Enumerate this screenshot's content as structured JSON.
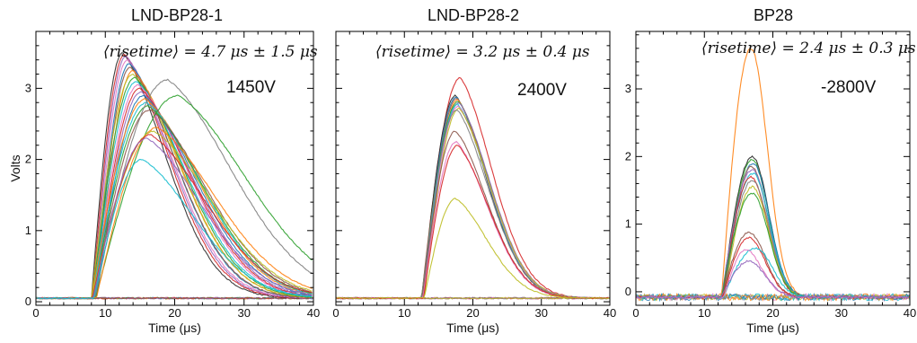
{
  "chart_data": [
    {
      "type": "line",
      "title": "LND-BP28-1",
      "xlabel": "Time (μs)",
      "ylabel": "Volts",
      "xlim": [
        0,
        40
      ],
      "ylim": [
        -0.05,
        3.8
      ],
      "xticks": [
        0,
        10,
        20,
        30,
        40
      ],
      "yticks": [
        0,
        1,
        2,
        3
      ],
      "annotation": "⟨risetime⟩ = 4.7 μs ± 1.5 μs",
      "voltage": "1450V",
      "baseline": 0.05,
      "rise_start_us": 8.0,
      "series_count": 40,
      "pulses": [
        {
          "peak_v": 3.5,
          "peak_time_us": 12.5,
          "color": "#2a2a2a"
        },
        {
          "peak_v": 3.48,
          "peak_time_us": 12.8,
          "color": "#d62728"
        },
        {
          "peak_v": 3.45,
          "peak_time_us": 13.0,
          "color": "#9467bd"
        },
        {
          "peak_v": 3.4,
          "peak_time_us": 13.2,
          "color": "#e377c2"
        },
        {
          "peak_v": 3.35,
          "peak_time_us": 13.5,
          "color": "#1f77b4"
        },
        {
          "peak_v": 3.3,
          "peak_time_us": 13.6,
          "color": "#8c564b"
        },
        {
          "peak_v": 3.25,
          "peak_time_us": 14.0,
          "color": "#ff7f0e"
        },
        {
          "peak_v": 3.2,
          "peak_time_us": 14.0,
          "color": "#bcbd22"
        },
        {
          "peak_v": 3.15,
          "peak_time_us": 14.3,
          "color": "#2ca02c"
        },
        {
          "peak_v": 3.1,
          "peak_time_us": 14.5,
          "color": "#17becf"
        },
        {
          "peak_v": 3.05,
          "peak_time_us": 14.8,
          "color": "#e377c2"
        },
        {
          "peak_v": 3.0,
          "peak_time_us": 15.0,
          "color": "#d62728"
        },
        {
          "peak_v": 2.95,
          "peak_time_us": 15.2,
          "color": "#9467bd"
        },
        {
          "peak_v": 2.9,
          "peak_time_us": 15.5,
          "color": "#1f77b4"
        },
        {
          "peak_v": 2.85,
          "peak_time_us": 15.8,
          "color": "#ff7f0e"
        },
        {
          "peak_v": 2.8,
          "peak_time_us": 16.0,
          "color": "#17becf"
        },
        {
          "peak_v": 2.75,
          "peak_time_us": 16.2,
          "color": "#2ca02c"
        },
        {
          "peak_v": 2.7,
          "peak_time_us": 16.5,
          "color": "#8c564b"
        },
        {
          "peak_v": 3.12,
          "peak_time_us": 19.0,
          "color": "#7f7f7f"
        },
        {
          "peak_v": 2.9,
          "peak_time_us": 20.5,
          "color": "#2ca02c"
        },
        {
          "peak_v": 2.45,
          "peak_time_us": 17.5,
          "color": "#ff7f0e"
        },
        {
          "peak_v": 2.4,
          "peak_time_us": 17.0,
          "color": "#bcbd22"
        },
        {
          "peak_v": 2.35,
          "peak_time_us": 16.5,
          "color": "#d62728"
        },
        {
          "peak_v": 2.3,
          "peak_time_us": 16.0,
          "color": "#9467bd"
        },
        {
          "peak_v": 2.0,
          "peak_time_us": 15.3,
          "color": "#17becf"
        }
      ]
    },
    {
      "type": "line",
      "title": "LND-BP28-2",
      "xlabel": "Time (μs)",
      "ylabel": "",
      "xlim": [
        0,
        40
      ],
      "ylim": [
        -0.05,
        3.8
      ],
      "xticks": [
        0,
        10,
        20,
        30,
        40
      ],
      "yticks": [],
      "annotation": "⟨risetime⟩ = 3.2 μs ± 0.4 μs",
      "voltage": "2400V",
      "baseline": 0.05,
      "rise_start_us": 12.5,
      "series_count": 40,
      "pulses": [
        {
          "peak_v": 3.15,
          "peak_time_us": 18.2,
          "color": "#d62728"
        },
        {
          "peak_v": 2.9,
          "peak_time_us": 17.5,
          "color": "#2a2a2a"
        },
        {
          "peak_v": 2.88,
          "peak_time_us": 17.6,
          "color": "#1f77b4"
        },
        {
          "peak_v": 2.86,
          "peak_time_us": 17.7,
          "color": "#8c564b"
        },
        {
          "peak_v": 2.84,
          "peak_time_us": 17.8,
          "color": "#ff7f0e"
        },
        {
          "peak_v": 2.82,
          "peak_time_us": 17.9,
          "color": "#2ca02c"
        },
        {
          "peak_v": 2.8,
          "peak_time_us": 18.0,
          "color": "#9467bd"
        },
        {
          "peak_v": 2.78,
          "peak_time_us": 17.8,
          "color": "#17becf"
        },
        {
          "peak_v": 2.75,
          "peak_time_us": 17.9,
          "color": "#e377c2"
        },
        {
          "peak_v": 2.72,
          "peak_time_us": 18.0,
          "color": "#bcbd22"
        },
        {
          "peak_v": 2.7,
          "peak_time_us": 17.7,
          "color": "#7f7f7f"
        },
        {
          "peak_v": 2.4,
          "peak_time_us": 17.5,
          "color": "#8c564b"
        },
        {
          "peak_v": 2.25,
          "peak_time_us": 17.6,
          "color": "#e377c2"
        },
        {
          "peak_v": 2.2,
          "peak_time_us": 17.8,
          "color": "#d62728"
        },
        {
          "peak_v": 1.45,
          "peak_time_us": 17.5,
          "color": "#bcbd22"
        }
      ]
    },
    {
      "type": "line",
      "title": "BP28",
      "xlabel": "Time (μs)",
      "ylabel": "",
      "xlim": [
        0,
        40
      ],
      "ylim": [
        -0.2,
        3.85
      ],
      "xticks": [
        0,
        10,
        20,
        30,
        40
      ],
      "yticks": [
        0,
        1,
        2,
        3
      ],
      "annotation": "⟨risetime⟩ = 2.4 μs ± 0.3 μs",
      "voltage": "-2800V",
      "baseline": -0.08,
      "rise_start_us": 12.5,
      "series_count": 40,
      "pulses": [
        {
          "peak_v": 3.6,
          "peak_time_us": 16.8,
          "color": "#ff7f0e"
        },
        {
          "peak_v": 2.0,
          "peak_time_us": 17.0,
          "color": "#2a2a2a"
        },
        {
          "peak_v": 1.95,
          "peak_time_us": 17.0,
          "color": "#2ca02c"
        },
        {
          "peak_v": 1.9,
          "peak_time_us": 17.1,
          "color": "#1f77b4"
        },
        {
          "peak_v": 1.85,
          "peak_time_us": 16.9,
          "color": "#8c564b"
        },
        {
          "peak_v": 1.8,
          "peak_time_us": 17.0,
          "color": "#9467bd"
        },
        {
          "peak_v": 1.75,
          "peak_time_us": 17.1,
          "color": "#17becf"
        },
        {
          "peak_v": 1.7,
          "peak_time_us": 16.8,
          "color": "#d62728"
        },
        {
          "peak_v": 1.65,
          "peak_time_us": 17.0,
          "color": "#7f7f7f"
        },
        {
          "peak_v": 1.55,
          "peak_time_us": 17.0,
          "color": "#bcbd22"
        },
        {
          "peak_v": 1.45,
          "peak_time_us": 17.0,
          "color": "#2ca02c"
        },
        {
          "peak_v": 0.88,
          "peak_time_us": 16.5,
          "color": "#8c564b"
        },
        {
          "peak_v": 0.8,
          "peak_time_us": 16.5,
          "color": "#d62728"
        },
        {
          "peak_v": 0.65,
          "peak_time_us": 17.5,
          "color": "#17becf"
        },
        {
          "peak_v": 0.62,
          "peak_time_us": 16.0,
          "color": "#e377c2"
        },
        {
          "peak_v": 0.45,
          "peak_time_us": 16.5,
          "color": "#9467bd"
        }
      ]
    }
  ]
}
